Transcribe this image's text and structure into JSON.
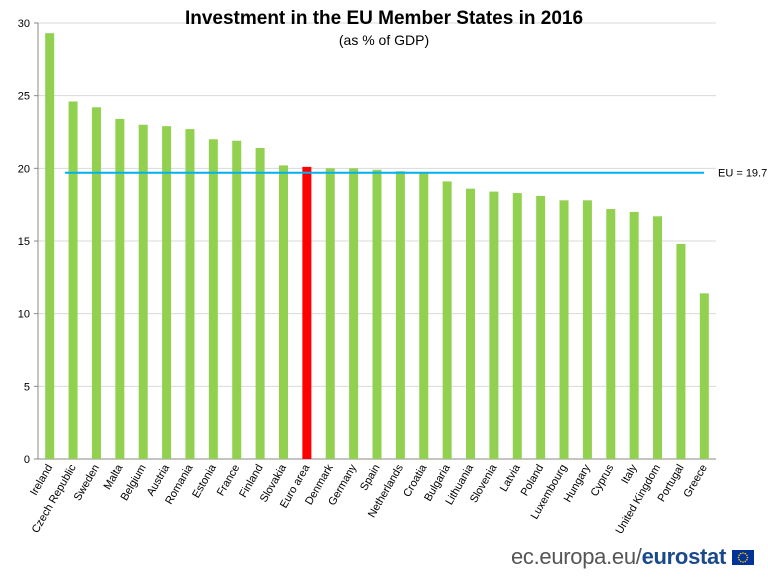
{
  "chart_data": {
    "type": "bar",
    "title": "Investment in the EU Member States in 2016",
    "subtitle": "(as % of GDP)",
    "categories": [
      "Ireland",
      "Czech Republic",
      "Sweden",
      "Malta",
      "Belgium",
      "Austria",
      "Romania",
      "Estonia",
      "France",
      "Finland",
      "Slovakia",
      "Euro area",
      "Denmark",
      "Germany",
      "Spain",
      "Netherlands",
      "Croatia",
      "Bulgaria",
      "Lithuania",
      "Slovenia",
      "Latvia",
      "Poland",
      "Luxembourg",
      "Hungary",
      "Cyprus",
      "Italy",
      "United Kingdom",
      "Portugal",
      "Greece"
    ],
    "values": [
      29.3,
      24.6,
      24.2,
      23.4,
      23.0,
      22.9,
      22.7,
      22.0,
      21.9,
      21.4,
      20.2,
      20.1,
      20.0,
      20.0,
      19.9,
      19.8,
      19.7,
      19.1,
      18.6,
      18.4,
      18.3,
      18.1,
      17.8,
      17.8,
      17.2,
      17.0,
      16.7,
      14.8,
      11.4
    ],
    "ylim": [
      0,
      30
    ],
    "yticks": [
      "0",
      "5",
      "10",
      "15",
      "20",
      "25",
      "30"
    ],
    "grid": true,
    "bar_color": "#92d050",
    "highlight_color": "#ff0000",
    "highlight_category": "Euro area",
    "reference_line": {
      "value": 19.7,
      "label": "EU = 19.7",
      "color": "#00b0f0"
    }
  },
  "footer": {
    "site": "ec.europa.eu/",
    "brand": "eurostat"
  }
}
